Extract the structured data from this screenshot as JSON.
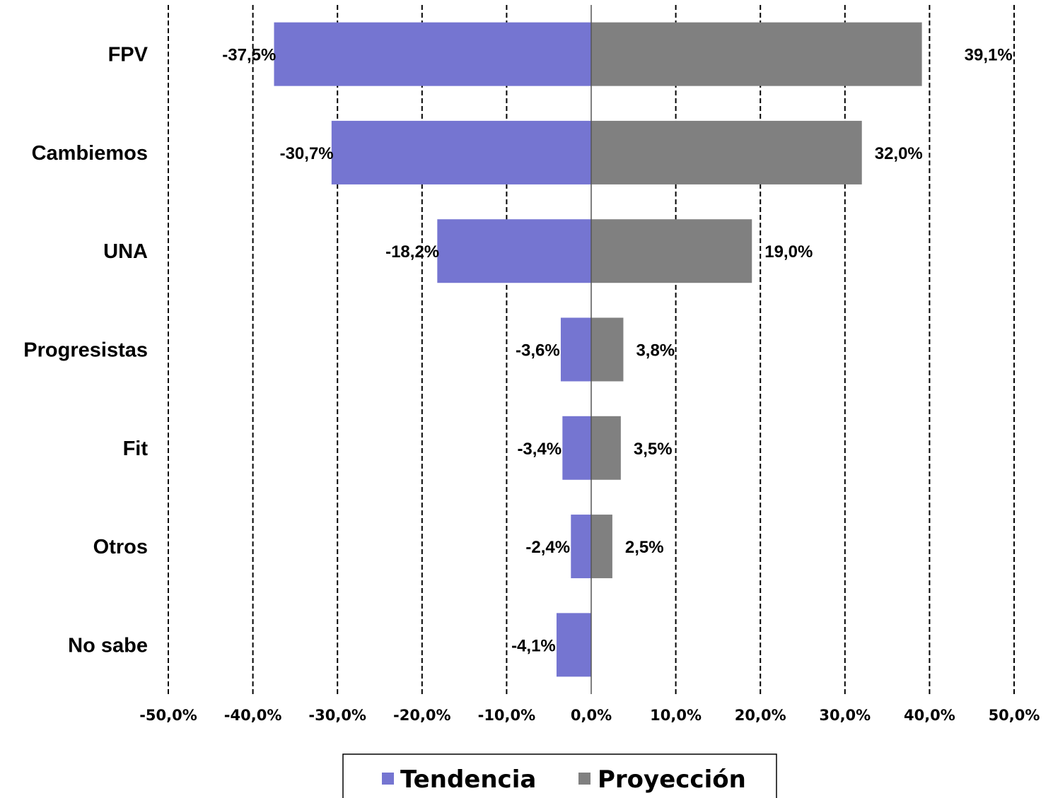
{
  "chart_data": {
    "type": "bar",
    "orientation": "horizontal",
    "categories": [
      "FPV",
      "Cambiemos",
      "UNA",
      "Progresistas",
      "Fit",
      "Otros",
      "No sabe"
    ],
    "series": [
      {
        "name": "Tendencia",
        "color": "#7575d1",
        "values": [
          -37.5,
          -30.7,
          -18.2,
          -3.6,
          -3.4,
          -2.4,
          -4.1
        ],
        "labels": [
          "-37,5%",
          "-30,7%",
          "-18,2%",
          "-3,6%",
          "-3,4%",
          "-2,4%",
          "-4,1%"
        ]
      },
      {
        "name": "Proyección",
        "color": "#808080",
        "values": [
          39.1,
          32.0,
          19.0,
          3.8,
          3.5,
          2.5,
          null
        ],
        "labels": [
          "39,1%",
          "32,0%",
          "19,0%",
          "3,8%",
          "3,5%",
          "2,5%",
          ""
        ]
      }
    ],
    "xlim": [
      -50,
      50
    ],
    "xticks": [
      -50,
      -40,
      -30,
      -20,
      -10,
      0,
      10,
      20,
      30,
      40,
      50
    ],
    "xtick_labels": [
      "-50,0%",
      "-40,0%",
      "-30,0%",
      "-20,0%",
      "-10,0%",
      "0,0%",
      "10,0%",
      "20,0%",
      "30,0%",
      "40,0%",
      "50,0%"
    ],
    "grid": "vertical-dashed",
    "legend_position": "bottom-center",
    "xlabel": "",
    "ylabel": "",
    "title": ""
  }
}
